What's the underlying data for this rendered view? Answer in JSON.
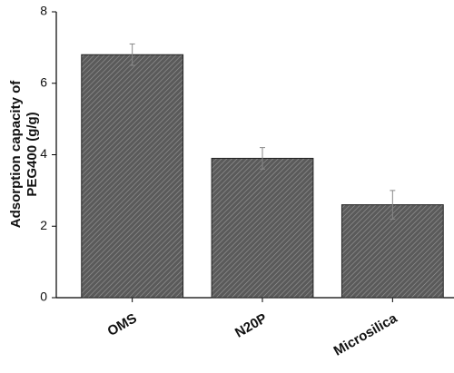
{
  "chart_data": {
    "type": "bar",
    "y_label": [
      "Adsorption capacity of",
      "PEG400 (g/g)"
    ],
    "categories": [
      "OMS",
      "N20P",
      "Microsilica"
    ],
    "values": [
      6.8,
      3.9,
      2.6
    ],
    "errors": [
      0.3,
      0.3,
      0.4
    ],
    "color": "#5a5a5a",
    "ylim": [
      0,
      8
    ],
    "yticks": [
      0,
      2,
      4,
      6,
      8
    ],
    "grid": false
  }
}
